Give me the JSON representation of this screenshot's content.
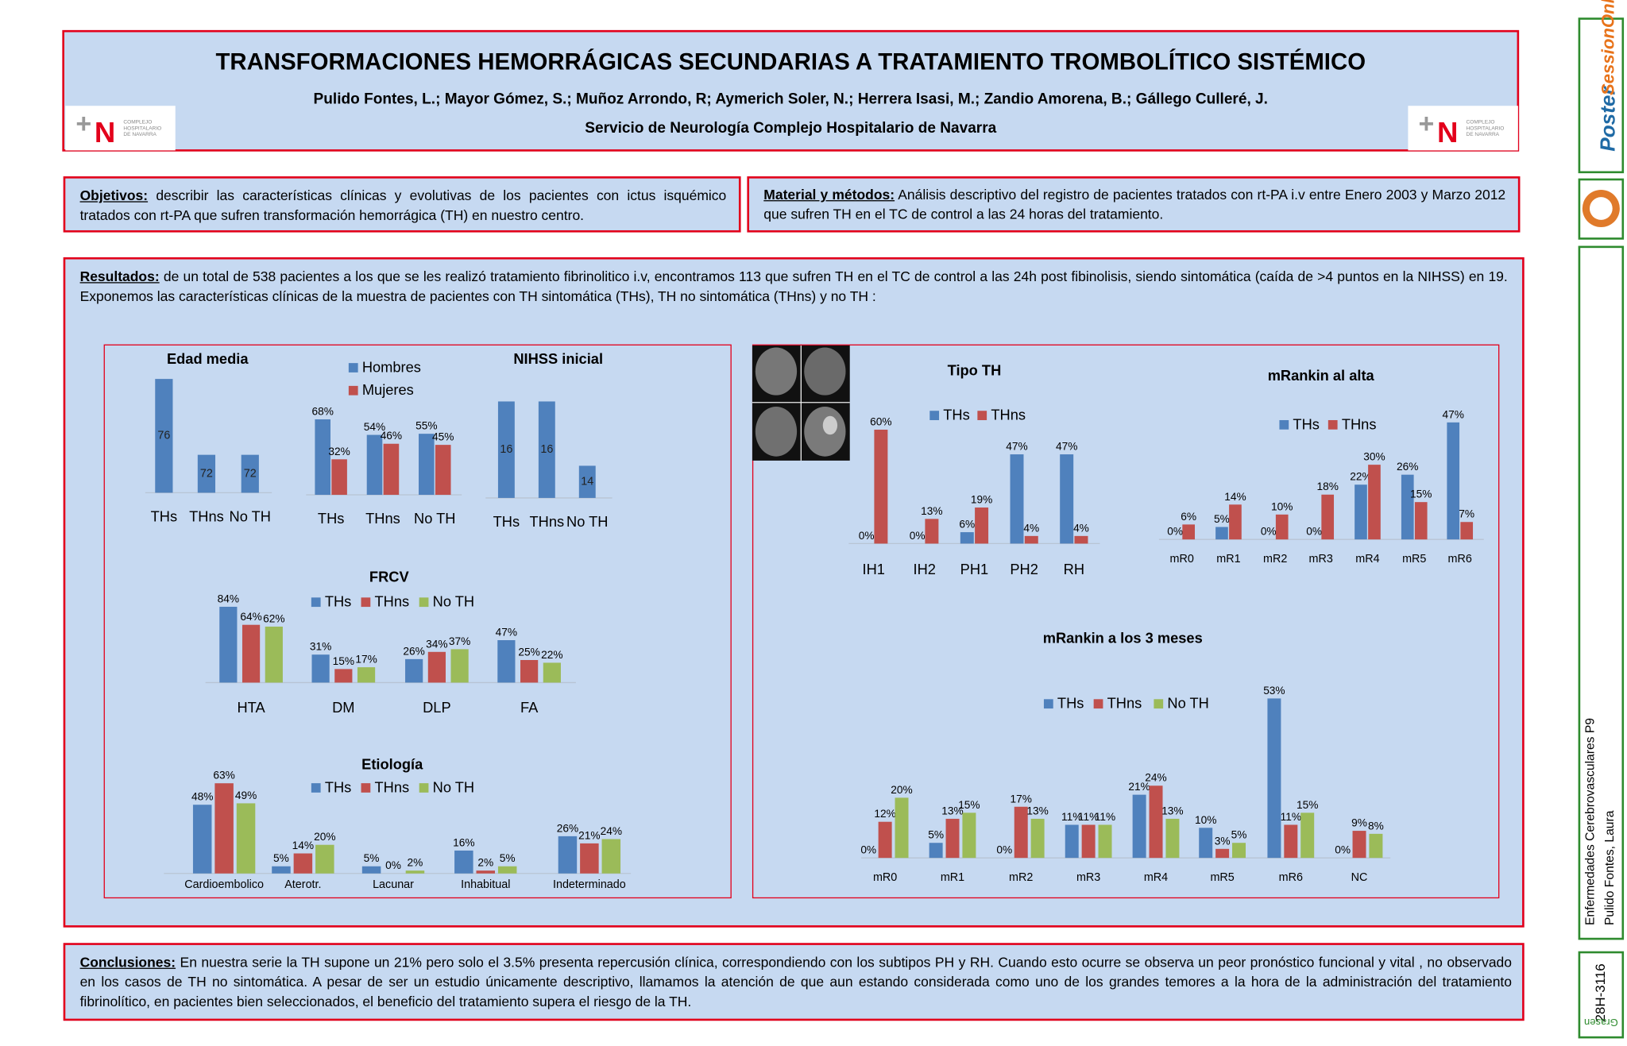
{
  "header": {
    "title": "TRANSFORMACIONES HEMORRÁGICAS SECUNDARIAS A TRATAMIENTO TROMBOLÍTICO SISTÉMICO",
    "authors": "Pulido Fontes, L.; Mayor Gómez, S.; Muñoz Arrondo, R; Aymerich Soler, N.; Herrera Isasi, M.; Zandio Amorena, B.; Gállego Culleré, J.",
    "affiliation": "Servicio de Neurología Complejo Hospitalario de Navarra",
    "logo_text": "COMPLEJO HOSPITALARIO DE NAVARRA"
  },
  "sections": {
    "objetivos": {
      "label": "Objetivos:",
      "text": "describir las características clínicas y evolutivas de los pacientes con ictus isquémico tratados con rt-PA que sufren transformación hemorrágica (TH) en nuestro centro."
    },
    "material": {
      "label": "Material y métodos:",
      "text": "Análisis descriptivo del registro de pacientes tratados con rt-PA i.v entre Enero 2003 y Marzo 2012 que sufren TH en el TC de control a las 24 horas del tratamiento."
    },
    "resultados": {
      "label": "Resultados:",
      "text": "de un total de 538 pacientes a los que se les realizó tratamiento fibrinolitico i.v, encontramos 113  que sufren TH en el TC de control a las 24h post fibinolisis, siendo sintomática (caída de >4 puntos en la NIHSS) en 19.  Exponemos las características clínicas de la muestra de pacientes con TH sintomática (THs), TH no sintomática (THns) y no TH :"
    },
    "conclusiones": {
      "label": "Conclusiones:",
      "text": "En nuestra serie la TH supone un 21% pero solo el 3.5% presenta repercusión clínica, correspondiendo con los subtipos PH y RH. Cuando esto ocurre se observa un peor pronóstico funcional y vital , no observado en los casos de TH no sintomática.  A pesar de ser un estudio únicamente descriptivo, llamamos la atención de que aun estando considerada como uno de los grandes temores a la hora de la administración del tratamiento fibrinolítico, en pacientes bien seleccionados, el beneficio del tratamiento supera el riesgo de la TH."
    }
  },
  "sidebar": {
    "logo_main": "Poster",
    "logo_sub": "SessionOnline",
    "session": "Enfermedades Cerebrovasculares P9",
    "author": "Pulido Fontes, Laura",
    "code": "28H-3116",
    "brand": "Grasen"
  },
  "chart_data": [
    {
      "type": "bar",
      "title": "Edad media",
      "categories": [
        "THs",
        "THns",
        "No TH"
      ],
      "values": [
        76,
        72,
        72
      ],
      "color": "#4f81bd",
      "ylim": [
        70,
        77
      ]
    },
    {
      "type": "bar",
      "categories": [
        "THs",
        "THns",
        "No TH"
      ],
      "ylim": [
        0,
        100
      ],
      "series": [
        {
          "name": "Hombres",
          "color": "#4f81bd",
          "values": [
            68,
            54,
            55
          ],
          "value_labels": [
            "68%",
            "54%",
            "55%"
          ]
        },
        {
          "name": "Mujeres",
          "color": "#c0504d",
          "values": [
            32,
            46,
            45
          ],
          "value_labels": [
            "32%",
            "46%",
            "45%"
          ]
        }
      ]
    },
    {
      "type": "bar",
      "title": "NIHSS inicial",
      "categories": [
        "THs",
        "THns",
        "No TH"
      ],
      "values": [
        16,
        16,
        14
      ],
      "color": "#4f81bd",
      "ylim": [
        13,
        17
      ]
    },
    {
      "type": "bar",
      "title": "FRCV",
      "categories": [
        "HTA",
        "DM",
        "DLP",
        "FA"
      ],
      "ylim": [
        0,
        100
      ],
      "series": [
        {
          "name": "THs",
          "color": "#4f81bd",
          "values": [
            84,
            31,
            26,
            47
          ],
          "value_labels": [
            "84%",
            "31%",
            "26%",
            "47%"
          ]
        },
        {
          "name": "THns",
          "color": "#c0504d",
          "values": [
            64,
            15,
            34,
            25
          ],
          "value_labels": [
            "64%",
            "15%",
            "34%",
            "25%"
          ]
        },
        {
          "name": "No TH",
          "color": "#9bbb59",
          "values": [
            62,
            17,
            37,
            22
          ],
          "value_labels": [
            "62%",
            "17%",
            "37%",
            "22%"
          ]
        }
      ]
    },
    {
      "type": "bar",
      "title": "Etiología",
      "categories": [
        "Cardioembolico",
        "Aterotr.",
        "Lacunar",
        "Inhabitual",
        "Indeterminado"
      ],
      "ylim": [
        0,
        100
      ],
      "series": [
        {
          "name": "THs",
          "color": "#4f81bd",
          "values": [
            48,
            5,
            5,
            16,
            26
          ],
          "value_labels": [
            "48%",
            "5%",
            "5%",
            "16%",
            "26%"
          ]
        },
        {
          "name": "THns",
          "color": "#c0504d",
          "values": [
            63,
            14,
            0,
            2,
            21
          ],
          "value_labels": [
            "63%",
            "14%",
            "0%",
            "2%",
            "21%"
          ]
        },
        {
          "name": "No TH",
          "color": "#9bbb59",
          "values": [
            49,
            20,
            2,
            5,
            24
          ],
          "value_labels": [
            "49%",
            "20%",
            "2%",
            "5%",
            "24%"
          ]
        }
      ]
    },
    {
      "type": "bar",
      "title": "Tipo TH",
      "categories": [
        "IH1",
        "IH2",
        "PH1",
        "PH2",
        "RH"
      ],
      "ylim": [
        0,
        100
      ],
      "series": [
        {
          "name": "THs",
          "color": "#4f81bd",
          "values": [
            0,
            0,
            6,
            47,
            47
          ],
          "value_labels": [
            "0%",
            "0%",
            "6%",
            "47%",
            "47%"
          ]
        },
        {
          "name": "THns",
          "color": "#c0504d",
          "values": [
            60,
            13,
            19,
            4,
            4
          ],
          "value_labels": [
            "60%",
            "13%",
            "19%",
            "4%",
            "4%"
          ]
        }
      ]
    },
    {
      "type": "bar",
      "title": "mRankin al alta",
      "categories": [
        "mR0",
        "mR1",
        "mR2",
        "mR3",
        "mR4",
        "mR5",
        "mR6"
      ],
      "ylim": [
        0,
        100
      ],
      "series": [
        {
          "name": "THs",
          "color": "#4f81bd",
          "values": [
            0,
            5,
            0,
            0,
            22,
            26,
            47
          ],
          "value_labels": [
            "0%",
            "5%",
            "0%",
            "0%",
            "22%",
            "26%",
            "47%"
          ]
        },
        {
          "name": "THns",
          "color": "#c0504d",
          "values": [
            6,
            14,
            10,
            18,
            30,
            15,
            7
          ],
          "value_labels": [
            "6%",
            "14%",
            "10%",
            "18%",
            "30%",
            "15%",
            "7%"
          ]
        }
      ]
    },
    {
      "type": "bar",
      "title": "mRankin a los 3 meses",
      "categories": [
        "mR0",
        "mR1",
        "mR2",
        "mR3",
        "mR4",
        "mR5",
        "mR6",
        "NC"
      ],
      "ylim": [
        0,
        100
      ],
      "series": [
        {
          "name": "THs",
          "color": "#4f81bd",
          "values": [
            0,
            5,
            0,
            11,
            21,
            10,
            53,
            0
          ],
          "value_labels": [
            "0%",
            "5%",
            "0%",
            "11%",
            "21%",
            "10%",
            "53%",
            "0%"
          ]
        },
        {
          "name": "THns",
          "color": "#c0504d",
          "values": [
            12,
            13,
            17,
            11,
            24,
            3,
            11,
            9
          ],
          "value_labels": [
            "12%",
            "13%",
            "17%",
            "11%",
            "24%",
            "3%",
            "11%",
            "9%"
          ]
        },
        {
          "name": "No TH",
          "color": "#9bbb59",
          "values": [
            20,
            15,
            13,
            11,
            13,
            5,
            15,
            8
          ],
          "value_labels": [
            "20%",
            "15%",
            "13%",
            "11%",
            "13%",
            "5%",
            "15%",
            "8%"
          ]
        }
      ]
    }
  ]
}
